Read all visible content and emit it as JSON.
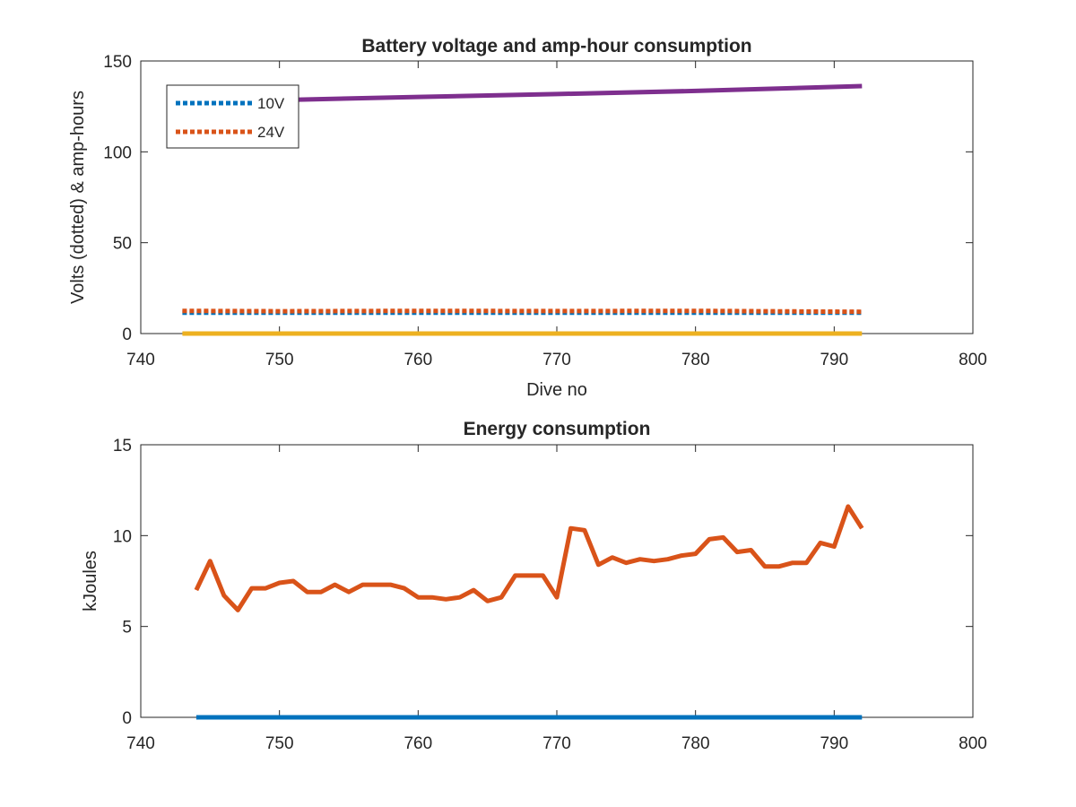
{
  "chart_data": [
    {
      "type": "line",
      "title": "Battery voltage and amp-hour consumption",
      "xlabel": "Dive no",
      "ylabel": "Volts (dotted) & amp-hours",
      "xlim": [
        740,
        800
      ],
      "ylim": [
        0,
        150
      ],
      "xticks": [
        "740",
        "750",
        "760",
        "770",
        "780",
        "790",
        "800"
      ],
      "yticks": [
        "0",
        "50",
        "100",
        "150"
      ],
      "grid": false,
      "legend_position": "top-left",
      "series": [
        {
          "name": "10V",
          "style": "dotted",
          "color": "#0072BD",
          "x": [
            743,
            750,
            760,
            770,
            780,
            792
          ],
          "y": [
            11.5,
            11.5,
            11.5,
            11.5,
            11.5,
            11.5
          ]
        },
        {
          "name": "24V",
          "style": "dotted",
          "color": "#D95319",
          "x": [
            743,
            750,
            760,
            770,
            780,
            792
          ],
          "y": [
            12.5,
            12.3,
            12.5,
            12.4,
            12.5,
            12.0
          ]
        },
        {
          "style": "solid",
          "color": "#EDB120",
          "x": [
            743,
            792
          ],
          "y": [
            0,
            0
          ]
        },
        {
          "style": "solid",
          "color": "#7E2F8E",
          "x": [
            743,
            750,
            760,
            770,
            780,
            792
          ],
          "y": [
            127.5,
            128.5,
            130.2,
            131.8,
            133.5,
            136.2
          ]
        }
      ]
    },
    {
      "type": "line",
      "title": "Energy consumption",
      "xlabel": "",
      "ylabel": "kJoules",
      "xlim": [
        740,
        800
      ],
      "ylim": [
        0,
        15
      ],
      "xticks": [
        "740",
        "750",
        "760",
        "770",
        "780",
        "790",
        "800"
      ],
      "yticks": [
        "0",
        "5",
        "10",
        "15"
      ],
      "grid": false,
      "series": [
        {
          "style": "solid",
          "color": "#D95319",
          "x": [
            744,
            745,
            746,
            747,
            748,
            749,
            750,
            751,
            752,
            753,
            754,
            755,
            756,
            757,
            758,
            759,
            760,
            761,
            762,
            763,
            764,
            765,
            766,
            767,
            768,
            769,
            770,
            771,
            772,
            773,
            774,
            775,
            776,
            777,
            778,
            779,
            780,
            781,
            782,
            783,
            784,
            785,
            786,
            787,
            788,
            789,
            790,
            791,
            792
          ],
          "y": [
            7.0,
            8.6,
            6.7,
            5.9,
            7.1,
            7.1,
            7.4,
            7.5,
            6.9,
            6.9,
            7.3,
            6.9,
            7.3,
            7.3,
            7.3,
            7.1,
            6.6,
            6.6,
            6.5,
            6.6,
            7.0,
            6.4,
            6.6,
            7.8,
            7.8,
            7.8,
            6.6,
            10.4,
            10.3,
            8.4,
            8.8,
            8.5,
            8.7,
            8.6,
            8.7,
            8.9,
            9.0,
            9.8,
            9.9,
            9.1,
            9.2,
            8.3,
            8.3,
            8.5,
            8.5,
            9.6,
            9.4,
            11.6,
            10.4
          ]
        },
        {
          "style": "solid",
          "color": "#0072BD",
          "x": [
            744,
            792
          ],
          "y": [
            0,
            0
          ]
        }
      ]
    }
  ]
}
